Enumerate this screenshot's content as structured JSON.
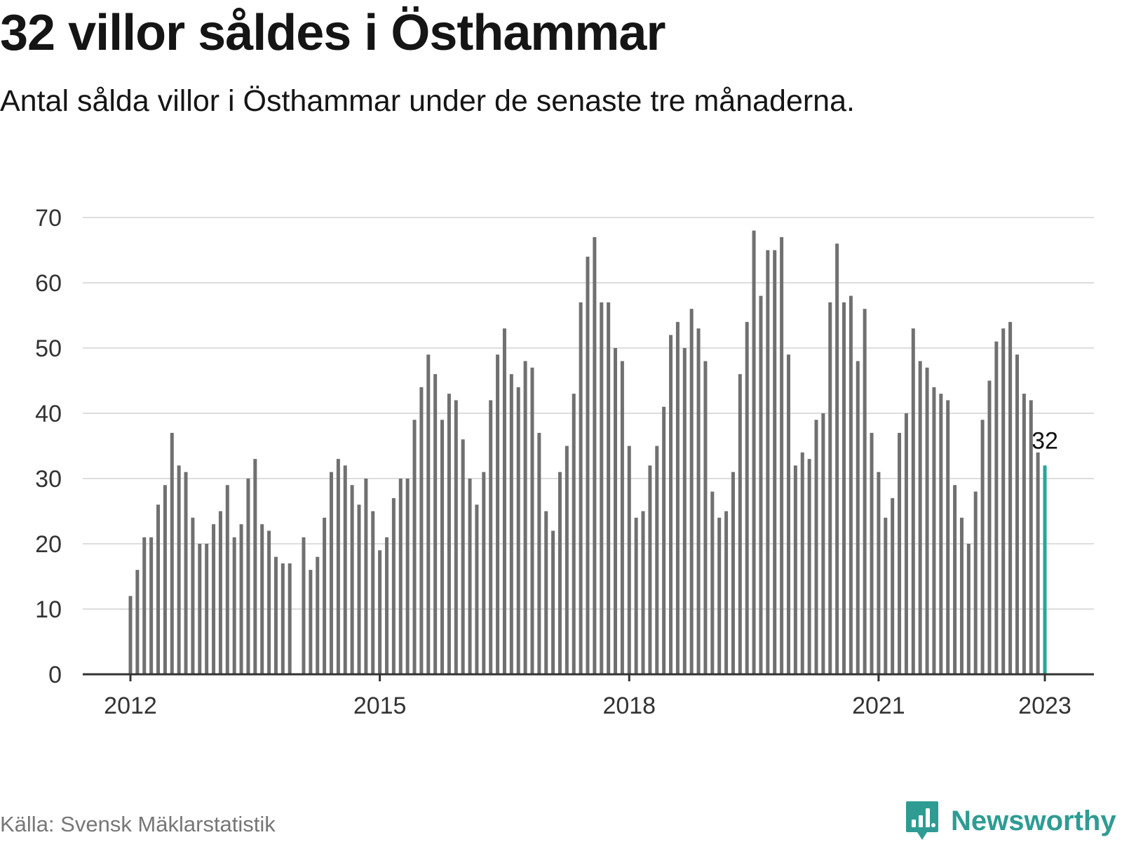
{
  "header": {
    "title": "32 villor såldes i Östhammar",
    "subtitle": "Antal sålda villor i Östhammar under de senaste tre månaderna."
  },
  "footer": {
    "source": "Källa: Svensk Mäklarstatistik",
    "brand": "Newsworthy"
  },
  "colors": {
    "bar": "#707070",
    "highlight": "#27a59a",
    "grid": "#dddddd",
    "axis": "#333333",
    "brand": "#2e9c93"
  },
  "chart_data": {
    "type": "bar",
    "title": "32 villor såldes i Östhammar",
    "subtitle": "Antal sålda villor i Östhammar under de senaste tre månaderna.",
    "xlabel": "",
    "ylabel": "",
    "ylim": [
      0,
      70
    ],
    "y_ticks": [
      0,
      10,
      20,
      30,
      40,
      50,
      60,
      70
    ],
    "x_ticks": [
      "2012",
      "2015",
      "2018",
      "2021",
      "2023"
    ],
    "x_start": "2012-01",
    "x_end": "2023-01",
    "grid": true,
    "highlight_label": "32",
    "categories": [
      "2012-01",
      "2012-02",
      "2012-03",
      "2012-04",
      "2012-05",
      "2012-06",
      "2012-07",
      "2012-08",
      "2012-09",
      "2012-10",
      "2012-11",
      "2012-12",
      "2013-01",
      "2013-02",
      "2013-03",
      "2013-04",
      "2013-05",
      "2013-06",
      "2013-07",
      "2013-08",
      "2013-09",
      "2013-10",
      "2013-11",
      "2013-12",
      "2014-01",
      "2014-02",
      "2014-03",
      "2014-04",
      "2014-05",
      "2014-06",
      "2014-07",
      "2014-08",
      "2014-09",
      "2014-10",
      "2014-11",
      "2014-12",
      "2015-01",
      "2015-02",
      "2015-03",
      "2015-04",
      "2015-05",
      "2015-06",
      "2015-07",
      "2015-08",
      "2015-09",
      "2015-10",
      "2015-11",
      "2015-12",
      "2016-01",
      "2016-02",
      "2016-03",
      "2016-04",
      "2016-05",
      "2016-06",
      "2016-07",
      "2016-08",
      "2016-09",
      "2016-10",
      "2016-11",
      "2016-12",
      "2017-01",
      "2017-02",
      "2017-03",
      "2017-04",
      "2017-05",
      "2017-06",
      "2017-07",
      "2017-08",
      "2017-09",
      "2017-10",
      "2017-11",
      "2017-12",
      "2018-01",
      "2018-02",
      "2018-03",
      "2018-04",
      "2018-05",
      "2018-06",
      "2018-07",
      "2018-08",
      "2018-09",
      "2018-10",
      "2018-11",
      "2018-12",
      "2019-01",
      "2019-02",
      "2019-03",
      "2019-04",
      "2019-05",
      "2019-06",
      "2019-07",
      "2019-08",
      "2019-09",
      "2019-10",
      "2019-11",
      "2019-12",
      "2020-01",
      "2020-02",
      "2020-03",
      "2020-04",
      "2020-05",
      "2020-06",
      "2020-07",
      "2020-08",
      "2020-09",
      "2020-10",
      "2020-11",
      "2020-12",
      "2021-01",
      "2021-02",
      "2021-03",
      "2021-04",
      "2021-05",
      "2021-06",
      "2021-07",
      "2021-08",
      "2021-09",
      "2021-10",
      "2021-11",
      "2021-12",
      "2022-01",
      "2022-02",
      "2022-03",
      "2022-04",
      "2022-05",
      "2022-06",
      "2022-07",
      "2022-08",
      "2022-09",
      "2022-10",
      "2022-11",
      "2022-12",
      "2023-01"
    ],
    "values": [
      12,
      16,
      21,
      21,
      26,
      29,
      37,
      32,
      31,
      24,
      20,
      20,
      23,
      25,
      29,
      21,
      23,
      30,
      33,
      23,
      22,
      18,
      17,
      17,
      null,
      21,
      16,
      18,
      24,
      31,
      33,
      32,
      29,
      26,
      30,
      25,
      19,
      21,
      27,
      30,
      30,
      39,
      44,
      49,
      46,
      39,
      43,
      42,
      36,
      30,
      26,
      31,
      42,
      49,
      53,
      46,
      44,
      48,
      47,
      37,
      25,
      22,
      31,
      35,
      43,
      57,
      64,
      67,
      57,
      57,
      50,
      48,
      35,
      24,
      25,
      32,
      35,
      41,
      52,
      54,
      50,
      56,
      53,
      48,
      28,
      24,
      25,
      31,
      46,
      54,
      68,
      58,
      65,
      65,
      67,
      49,
      32,
      34,
      33,
      39,
      40,
      57,
      66,
      57,
      58,
      48,
      56,
      37,
      31,
      24,
      27,
      37,
      40,
      53,
      48,
      47,
      44,
      43,
      42,
      29,
      24,
      20,
      28,
      39,
      45,
      51,
      53,
      54,
      49,
      43,
      42,
      34,
      32
    ]
  }
}
